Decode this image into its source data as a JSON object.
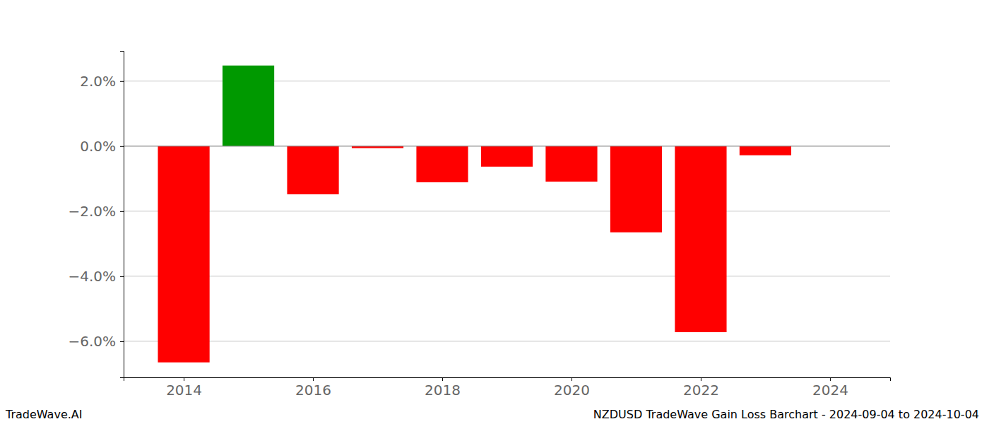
{
  "chart_data": {
    "type": "bar",
    "title": "NZDUSD TradeWave Gain Loss Barchart - 2024-09-04 to 2024-10-04",
    "annotations": [
      "TradeWave.AI"
    ],
    "x": [
      2014,
      2015,
      2016,
      2017,
      2018,
      2019,
      2020,
      2021,
      2022,
      2023
    ],
    "values": [
      -6.65,
      2.48,
      -1.48,
      -0.06,
      -1.11,
      -0.63,
      -1.09,
      -2.65,
      -5.72,
      -0.28
    ],
    "colors": [
      "#ff0000",
      "#009900",
      "#ff0000",
      "#ff0000",
      "#ff0000",
      "#ff0000",
      "#ff0000",
      "#ff0000",
      "#ff0000",
      "#ff0000"
    ],
    "xlim": [
      2013.07,
      2024.93
    ],
    "xticks": [
      2014,
      2016,
      2018,
      2020,
      2022,
      2024
    ],
    "ylim": [
      -7.11,
      2.93
    ],
    "yticks": [
      {
        "value": -6,
        "label": "−6.0%"
      },
      {
        "value": -4,
        "label": "−4.0%"
      },
      {
        "value": -2,
        "label": "−2.0%"
      },
      {
        "value": 0,
        "label": "0.0%"
      },
      {
        "value": 2,
        "label": "2.0%"
      }
    ],
    "grid": true
  }
}
